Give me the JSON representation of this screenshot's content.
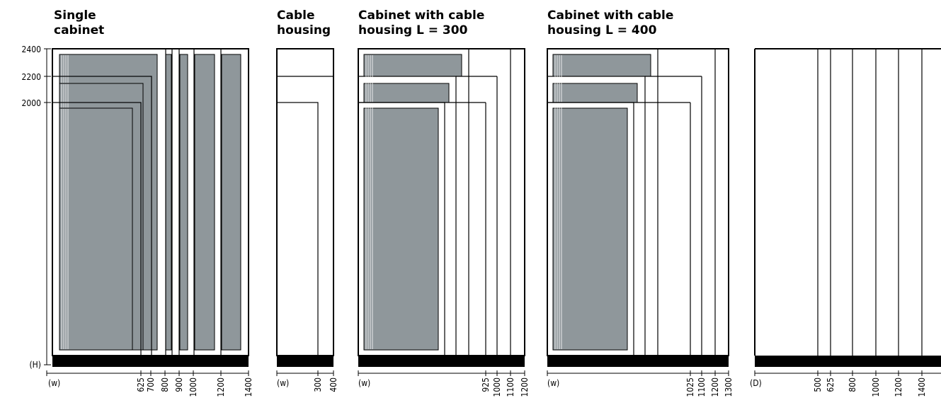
{
  "groups": [
    {
      "id": "single",
      "title_lines": [
        "Single",
        "cabinet"
      ],
      "axis_letter": "(w)",
      "ticks": [
        "625",
        "700",
        "800",
        "900",
        "1000",
        "1200",
        "1400"
      ]
    },
    {
      "id": "cable",
      "title_lines": [
        "Cable",
        "housing"
      ],
      "axis_letter": "(w)",
      "ticks": [
        "300",
        "400"
      ]
    },
    {
      "id": "c300",
      "title_lines": [
        "Cabinet with cable",
        "housing L = 300"
      ],
      "axis_letter": "(w)",
      "ticks": [
        "925",
        "1000",
        "1100",
        "1200"
      ]
    },
    {
      "id": "c400",
      "title_lines": [
        "Cabinet with cable",
        "housing L = 400"
      ],
      "axis_letter": "(w)",
      "ticks": [
        "1025",
        "1100",
        "1200",
        "1300"
      ]
    },
    {
      "id": "depth",
      "title_lines": [],
      "axis_letter": "(D)",
      "ticks": [
        "500",
        "625",
        "800",
        "1000",
        "1200",
        "1400"
      ]
    }
  ],
  "heights": {
    "labels": [
      "2400",
      "2200",
      "2000"
    ],
    "axis_letter": "(H)"
  },
  "colors": {
    "door_fill": "#8f979b",
    "line": "#000000",
    "base": "#000000"
  }
}
